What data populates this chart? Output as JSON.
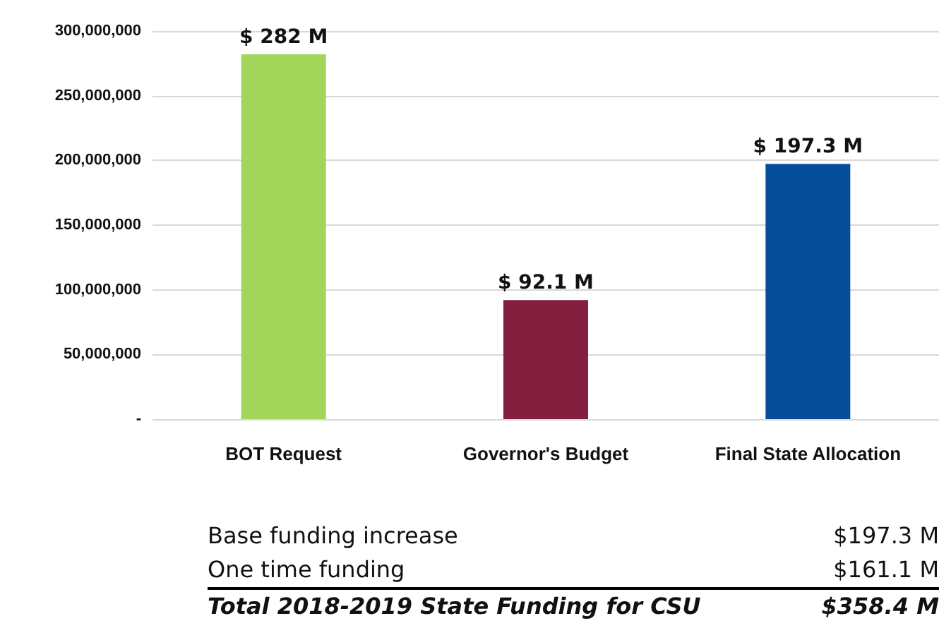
{
  "chart_data": {
    "type": "bar",
    "categories": [
      "BOT Request",
      "Governor's Budget",
      "Final State Allocation"
    ],
    "values": [
      282000000,
      92100000,
      197300000
    ],
    "colors": [
      "#a2d55a",
      "#831f3f",
      "#064d9a"
    ],
    "value_labels": [
      "$ 282 M",
      "$ 92.1 M",
      "$ 197.3 M"
    ],
    "ylim": [
      0,
      300000000
    ],
    "yticks": [
      {
        "value": 0,
        "label": "-"
      },
      {
        "value": 50000000,
        "label": "50,000,000"
      },
      {
        "value": 100000000,
        "label": "100,000,000"
      },
      {
        "value": 150000000,
        "label": "150,000,000"
      },
      {
        "value": 200000000,
        "label": "200,000,000"
      },
      {
        "value": 250000000,
        "label": "250,000,000"
      },
      {
        "value": 300000000,
        "label": "300,000,000"
      }
    ],
    "grid": "y",
    "annotations": [
      "Base funding increase",
      "$197.3 M",
      "One time funding",
      "$161.1 M",
      "Total 2018-2019 State Funding for CSU",
      "$358.4 M"
    ]
  }
}
